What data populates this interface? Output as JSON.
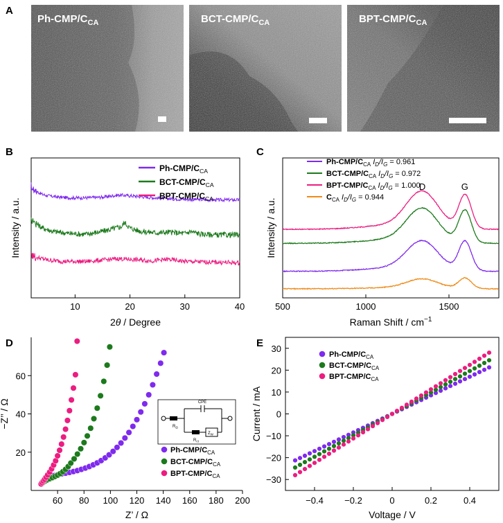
{
  "panel_letters": {
    "a": "A",
    "b": "B",
    "c": "C",
    "d": "D",
    "e": "E"
  },
  "colors": {
    "purple": "#7f2aee",
    "green": "#1c7a1c",
    "pink": "#ec1d80",
    "orange": "#ef8a17"
  },
  "tem": [
    {
      "label": "Ph-CMP/C",
      "sub": "CA",
      "bg": "#787878"
    },
    {
      "label": "BCT-CMP/C",
      "sub": "CA",
      "bg": "#6f6f6f"
    },
    {
      "label": "BPT-CMP/C",
      "sub": "CA",
      "bg": "#808080"
    }
  ],
  "chart_data": [
    {
      "id": "B",
      "type": "line",
      "title": "",
      "xlabel_pre": "2",
      "xlabel_theta": "θ",
      "xlabel_post": " / Degree",
      "ylabel": "Intensity / a.u.",
      "xlim": [
        2,
        40
      ],
      "ylim": [
        0,
        10
      ],
      "xticks": [
        10,
        20,
        30,
        40
      ],
      "legend": [
        {
          "name": "Ph-CMP/C",
          "sub": "CA",
          "color": "#7f2aee"
        },
        {
          "name": "BCT-CMP/C",
          "sub": "CA",
          "color": "#1c7a1c"
        },
        {
          "name": "BPT-CMP/C",
          "sub": "CA",
          "color": "#ec1d80"
        }
      ],
      "series": [
        {
          "name": "Ph-CMP/CCA",
          "color": "#7f2aee",
          "noise": 0.12,
          "x": [
            2,
            3,
            4,
            5,
            7,
            9,
            12,
            15,
            18,
            20,
            23,
            26,
            30,
            35,
            40
          ],
          "y": [
            7.9,
            7.6,
            7.4,
            7.3,
            7.2,
            7.15,
            7.15,
            7.2,
            7.35,
            7.3,
            7.2,
            7.1,
            7.05,
            7.0,
            7.0
          ]
        },
        {
          "name": "BCT-CMP/CCA",
          "color": "#1c7a1c",
          "noise": 0.2,
          "x": [
            2,
            3,
            4,
            6,
            9,
            12,
            15,
            17,
            18.5,
            19,
            20,
            22,
            25,
            27,
            30,
            31,
            33,
            36,
            40
          ],
          "y": [
            5.7,
            5.3,
            5.0,
            4.75,
            4.6,
            4.55,
            4.75,
            4.95,
            5.1,
            5.4,
            5.0,
            4.75,
            4.65,
            4.7,
            4.6,
            4.75,
            4.55,
            4.5,
            4.5
          ]
        },
        {
          "name": "BPT-CMP/CCA",
          "color": "#ec1d80",
          "noise": 0.16,
          "x": [
            2,
            3,
            5,
            8,
            12,
            15,
            18,
            20,
            24,
            27,
            30,
            35,
            40
          ],
          "y": [
            3.1,
            2.9,
            2.7,
            2.6,
            2.6,
            2.7,
            2.8,
            2.75,
            2.65,
            2.75,
            2.6,
            2.55,
            2.5
          ]
        }
      ]
    },
    {
      "id": "C",
      "type": "line",
      "title": "",
      "xlabel": "Raman Shift / cm",
      "xlabel_sup": "−1",
      "ylabel": "Intensity / a.u.",
      "xlim": [
        500,
        1800
      ],
      "ylim": [
        0,
        10
      ],
      "xticks": [
        500,
        1000,
        1500
      ],
      "annotations": [
        {
          "text": "D",
          "x": 1340
        },
        {
          "text": "G",
          "x": 1595
        }
      ],
      "legend": [
        {
          "name": "Ph-CMP/C",
          "sub": "CA",
          "suffix": " I",
          "suffix_sub": "D",
          "slash": "/I",
          "slash_sub": "G",
          "value": " = 0.961",
          "color": "#7f2aee"
        },
        {
          "name": "BCT-CMP/C",
          "sub": "CA",
          "suffix": " I",
          "suffix_sub": "D",
          "slash": "/I",
          "slash_sub": "G",
          "value": " = 0.972",
          "color": "#1c7a1c"
        },
        {
          "name": "BPT-CMP/C",
          "sub": "CA",
          "suffix": " I",
          "suffix_sub": "D",
          "slash": "/I",
          "slash_sub": "G",
          "value": " = 1.000",
          "color": "#ec1d80"
        },
        {
          "name": "C",
          "sub": "CA",
          "suffix": " I",
          "suffix_sub": "D",
          "slash": "/I",
          "slash_sub": "G",
          "value": " = 0.944",
          "color": "#ef8a17"
        }
      ],
      "series": [
        {
          "name": "BPT-CMP/CCA",
          "color": "#ec1d80",
          "base": 4.9,
          "d": 2.5,
          "g": 2.4
        },
        {
          "name": "BCT-CMP/CCA",
          "color": "#1c7a1c",
          "base": 3.9,
          "d": 2.3,
          "g": 2.3
        },
        {
          "name": "Ph-CMP/CCA",
          "color": "#7f2aee",
          "base": 1.9,
          "d": 2.0,
          "g": 2.1
        },
        {
          "name": "CCA",
          "color": "#ef8a17",
          "base": 0.65,
          "d": 0.65,
          "g": 0.75
        }
      ]
    },
    {
      "id": "D",
      "type": "scatter",
      "xlabel": "Z’ / Ω",
      "ylabel": "−Z’’ / Ω",
      "xlim": [
        40,
        200
      ],
      "ylim": [
        0,
        80
      ],
      "xticks": [
        60,
        80,
        100,
        120,
        140,
        160,
        180,
        200
      ],
      "yticks": [
        20,
        40,
        60
      ],
      "inset": {
        "cpe": "CPE",
        "r_omega": "R",
        "r_omega_sub": "Ω",
        "r_ct": "R",
        "r_ct_sub": "ct",
        "zw": "Z",
        "zw_sub": "W"
      },
      "legend": [
        {
          "name": "Ph-CMP/C",
          "sub": "CA",
          "color": "#7f2aee"
        },
        {
          "name": "BCT-CMP/C",
          "sub": "CA",
          "color": "#1c7a1c"
        },
        {
          "name": "BPT-CMP/C",
          "sub": "CA",
          "color": "#ec1d80"
        }
      ],
      "series": [
        {
          "name": "Ph-CMP/CCA",
          "color": "#7f2aee",
          "x": [
            48.8,
            50,
            51.5,
            53,
            55,
            57.5,
            60,
            63,
            66,
            69,
            72,
            75,
            78,
            81,
            84,
            87,
            90,
            93,
            96,
            99,
            102,
            105,
            108,
            111,
            114,
            117,
            120,
            123,
            126,
            129,
            132,
            135,
            138,
            140.5
          ],
          "y": [
            4,
            5,
            6,
            6.7,
            7.3,
            7.8,
            8.2,
            8.6,
            9.0,
            9.4,
            9.9,
            10.4,
            11.0,
            11.7,
            12.5,
            13.4,
            14.4,
            15.6,
            17,
            18.6,
            20.4,
            22.5,
            24.8,
            27.4,
            30.3,
            33.5,
            37,
            41,
            45.3,
            50,
            55.2,
            60.8,
            66.5,
            72
          ]
        },
        {
          "name": "BCT-CMP/CCA",
          "color": "#1c7a1c",
          "x": [
            48,
            49,
            50.5,
            52,
            54,
            56,
            58,
            60,
            62,
            64,
            66,
            68,
            70,
            72.5,
            75,
            77.5,
            80,
            82.5,
            85,
            87.5,
            90,
            92.5,
            95,
            97.5,
            99.5
          ],
          "y": [
            3.6,
            4.2,
            4.9,
            5.5,
            6.1,
            6.7,
            7.3,
            8,
            8.8,
            9.8,
            11,
            12.5,
            14.3,
            16.5,
            19,
            21.8,
            25,
            28.5,
            32.5,
            37.5,
            43,
            49.5,
            57,
            65.5,
            75
          ]
        },
        {
          "name": "BPT-CMP/CCA",
          "color": "#ec1d80",
          "x": [
            47.5,
            48.3,
            49.2,
            50.2,
            51.3,
            52.5,
            54,
            55.5,
            57,
            58.5,
            60,
            61.5,
            63,
            64.5,
            66,
            67.5,
            69,
            70.5,
            72,
            73.5,
            74.8
          ],
          "y": [
            3.4,
            4.1,
            4.9,
            5.8,
            6.9,
            8.1,
            9.6,
            11.3,
            13.3,
            15.5,
            18.1,
            21,
            24.2,
            27.9,
            32,
            36.6,
            41.7,
            47.3,
            53.5,
            60.5,
            78
          ]
        }
      ]
    },
    {
      "id": "E",
      "type": "scatter",
      "xlabel": "Voltage / V",
      "ylabel": "Current / mA",
      "xlim": [
        -0.55,
        0.55
      ],
      "ylim": [
        -35,
        35
      ],
      "xticks": [
        -0.4,
        -0.2,
        0,
        0.2,
        0.4
      ],
      "yticks": [
        -30,
        -20,
        -10,
        0,
        10,
        20,
        30
      ],
      "legend": [
        {
          "name": "Ph-CMP/C",
          "sub": "CA",
          "color": "#7f2aee"
        },
        {
          "name": "BCT-CMP/C",
          "sub": "CA",
          "color": "#1c7a1c"
        },
        {
          "name": "BPT-CMP/C",
          "sub": "CA",
          "color": "#ec1d80"
        }
      ],
      "series": [
        {
          "name": "Ph-CMP/CCA",
          "color": "#7f2aee",
          "x0": -0.5,
          "x1": 0.5,
          "n": 41,
          "slope": 42.5
        },
        {
          "name": "BCT-CMP/CCA",
          "color": "#1c7a1c",
          "x0": -0.5,
          "x1": 0.5,
          "n": 41,
          "slope": 49
        },
        {
          "name": "BPT-CMP/CCA",
          "color": "#ec1d80",
          "x0": -0.5,
          "x1": 0.5,
          "n": 41,
          "slope": 56
        }
      ]
    }
  ]
}
